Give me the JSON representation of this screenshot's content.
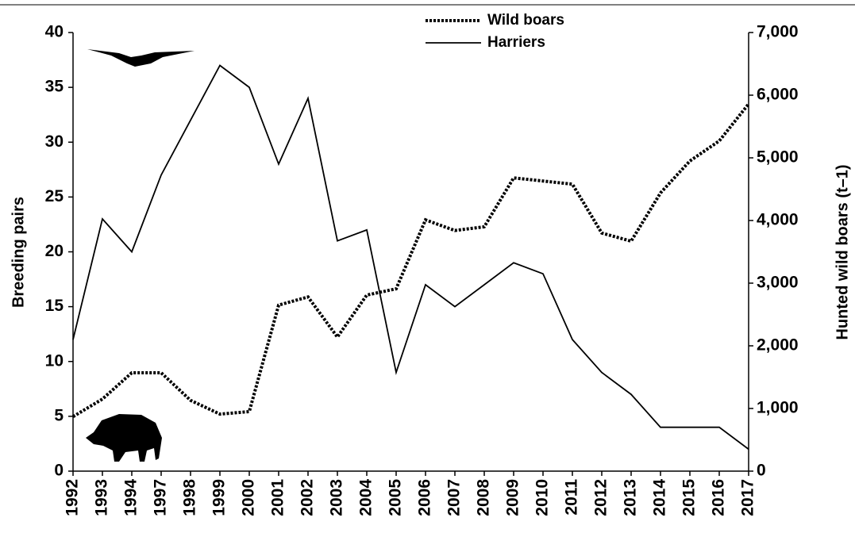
{
  "chart_data": {
    "type": "line",
    "categories": [
      "1992",
      "1993",
      "1994",
      "1997",
      "1998",
      "1999",
      "2000",
      "2001",
      "2002",
      "2003",
      "2004",
      "2005",
      "2006",
      "2007",
      "2008",
      "2009",
      "2010",
      "2011",
      "2012",
      "2013",
      "2014",
      "2015",
      "2016",
      "2017"
    ],
    "y_label": "Breeding pairs",
    "y2_label": "Hunted wild boars (t–1)",
    "ylim": [
      0,
      40
    ],
    "yticks": [
      0,
      5,
      10,
      15,
      20,
      25,
      30,
      35,
      40
    ],
    "y2lim": [
      0,
      7000
    ],
    "y2ticks": [
      0,
      {
        "value": 1000,
        "label": "1,000"
      },
      {
        "value": 2000,
        "label": "2,000"
      },
      {
        "value": 3000,
        "label": "3,000"
      },
      {
        "value": 4000,
        "label": "4,000"
      },
      {
        "value": 5000,
        "label": "5,000"
      },
      {
        "value": 6000,
        "label": "6,000"
      },
      {
        "value": 7000,
        "label": "7,000"
      }
    ],
    "series": [
      {
        "name": "Wild boars",
        "color": "#000000",
        "style": "dotted",
        "axis": "y2",
        "values": [
          870,
          1150,
          1570,
          1570,
          1130,
          910,
          950,
          2650,
          2780,
          2140,
          2810,
          2910,
          4010,
          3840,
          3900,
          4680,
          4630,
          4580,
          3800,
          3670,
          4440,
          4950,
          5270,
          5860
        ]
      },
      {
        "name": "Harriers",
        "color": "#000000",
        "style": "solid",
        "values": [
          12,
          23,
          20,
          27,
          32,
          37,
          35,
          28,
          34,
          21,
          22,
          9,
          17,
          15,
          17,
          19,
          18,
          12,
          9,
          7,
          4,
          4,
          4,
          2
        ]
      }
    ]
  }
}
